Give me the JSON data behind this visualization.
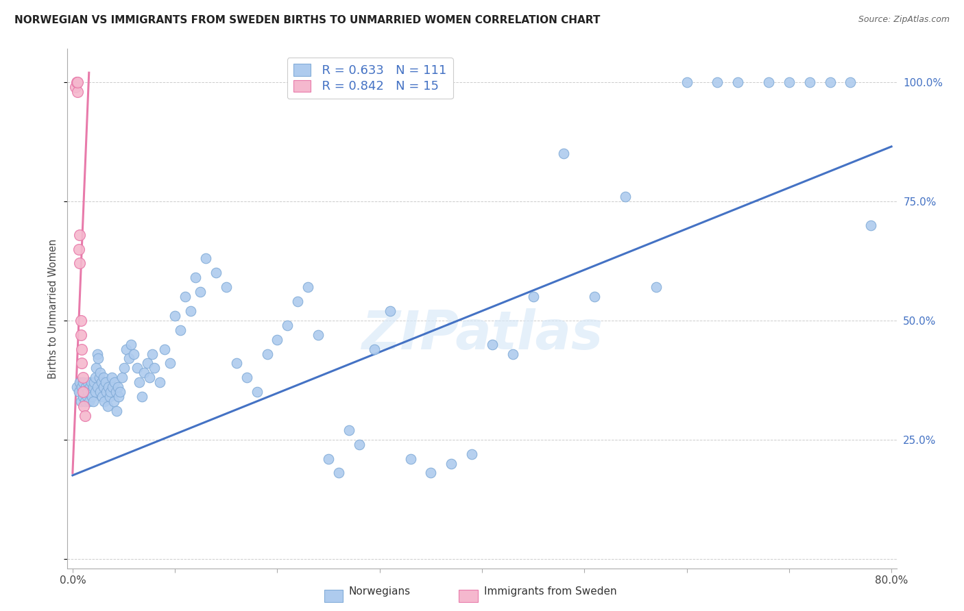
{
  "title": "NORWEGIAN VS IMMIGRANTS FROM SWEDEN BIRTHS TO UNMARRIED WOMEN CORRELATION CHART",
  "source": "Source: ZipAtlas.com",
  "ylabel": "Births to Unmarried Women",
  "xlim": [
    -0.005,
    0.805
  ],
  "ylim": [
    -0.02,
    1.07
  ],
  "x_tick_positions": [
    0.0,
    0.1,
    0.2,
    0.3,
    0.4,
    0.5,
    0.6,
    0.7,
    0.8
  ],
  "x_tick_labels": [
    "0.0%",
    "",
    "",
    "",
    "",
    "",
    "",
    "",
    "80.0%"
  ],
  "y_tick_positions": [
    0.0,
    0.25,
    0.5,
    0.75,
    1.0
  ],
  "y_tick_labels": [
    "",
    "25.0%",
    "50.0%",
    "75.0%",
    "100.0%"
  ],
  "norwegians_color": "#aecbee",
  "norwegians_edge_color": "#82acd8",
  "immigrants_color": "#f5b8ce",
  "immigrants_edge_color": "#e87aaa",
  "blue_line_color": "#4472c4",
  "pink_line_color": "#e87aaa",
  "watermark": "ZIPatlas",
  "legend_r1": "R = 0.633",
  "legend_n1": "N = 111",
  "legend_r2": "R = 0.842",
  "legend_n2": "N = 15",
  "nor_x": [
    0.004,
    0.006,
    0.007,
    0.008,
    0.009,
    0.01,
    0.01,
    0.011,
    0.012,
    0.013,
    0.014,
    0.015,
    0.015,
    0.016,
    0.017,
    0.018,
    0.018,
    0.019,
    0.02,
    0.02,
    0.021,
    0.022,
    0.022,
    0.023,
    0.024,
    0.024,
    0.025,
    0.026,
    0.027,
    0.027,
    0.028,
    0.029,
    0.03,
    0.03,
    0.031,
    0.032,
    0.033,
    0.034,
    0.035,
    0.036,
    0.037,
    0.038,
    0.039,
    0.04,
    0.041,
    0.042,
    0.043,
    0.044,
    0.045,
    0.046,
    0.048,
    0.05,
    0.052,
    0.055,
    0.057,
    0.06,
    0.063,
    0.065,
    0.068,
    0.07,
    0.073,
    0.075,
    0.078,
    0.08,
    0.085,
    0.09,
    0.095,
    0.1,
    0.105,
    0.11,
    0.115,
    0.12,
    0.125,
    0.13,
    0.14,
    0.15,
    0.16,
    0.17,
    0.18,
    0.19,
    0.2,
    0.21,
    0.22,
    0.23,
    0.24,
    0.25,
    0.26,
    0.27,
    0.28,
    0.295,
    0.31,
    0.33,
    0.35,
    0.37,
    0.39,
    0.41,
    0.43,
    0.45,
    0.48,
    0.51,
    0.54,
    0.57,
    0.6,
    0.63,
    0.65,
    0.68,
    0.7,
    0.72,
    0.74,
    0.76,
    0.78
  ],
  "nor_y": [
    0.36,
    0.35,
    0.37,
    0.33,
    0.36,
    0.34,
    0.37,
    0.35,
    0.33,
    0.36,
    0.34,
    0.37,
    0.35,
    0.33,
    0.36,
    0.35,
    0.37,
    0.34,
    0.36,
    0.33,
    0.37,
    0.35,
    0.38,
    0.4,
    0.43,
    0.36,
    0.42,
    0.38,
    0.35,
    0.39,
    0.37,
    0.34,
    0.38,
    0.36,
    0.33,
    0.37,
    0.35,
    0.32,
    0.36,
    0.34,
    0.35,
    0.38,
    0.36,
    0.33,
    0.37,
    0.35,
    0.31,
    0.36,
    0.34,
    0.35,
    0.38,
    0.4,
    0.44,
    0.42,
    0.45,
    0.43,
    0.4,
    0.37,
    0.34,
    0.39,
    0.41,
    0.38,
    0.43,
    0.4,
    0.37,
    0.44,
    0.41,
    0.51,
    0.48,
    0.55,
    0.52,
    0.59,
    0.56,
    0.63,
    0.6,
    0.57,
    0.41,
    0.38,
    0.35,
    0.43,
    0.46,
    0.49,
    0.54,
    0.57,
    0.47,
    0.21,
    0.18,
    0.27,
    0.24,
    0.44,
    0.52,
    0.21,
    0.18,
    0.2,
    0.22,
    0.45,
    0.43,
    0.55,
    0.85,
    0.55,
    0.76,
    0.57,
    1.0,
    1.0,
    1.0,
    1.0,
    1.0,
    1.0,
    1.0,
    1.0,
    0.7
  ],
  "imm_x": [
    0.003,
    0.004,
    0.005,
    0.005,
    0.006,
    0.007,
    0.007,
    0.008,
    0.008,
    0.009,
    0.009,
    0.01,
    0.01,
    0.011,
    0.012
  ],
  "imm_y": [
    0.99,
    1.0,
    0.98,
    1.0,
    0.65,
    0.62,
    0.68,
    0.5,
    0.47,
    0.44,
    0.41,
    0.38,
    0.35,
    0.32,
    0.3
  ],
  "blue_line_x0": 0.0,
  "blue_line_x1": 0.8,
  "blue_line_y0": 0.175,
  "blue_line_y1": 0.865,
  "pink_line_x0": 0.0,
  "pink_line_x1": 0.016,
  "pink_line_y0": 0.18,
  "pink_line_y1": 1.02
}
